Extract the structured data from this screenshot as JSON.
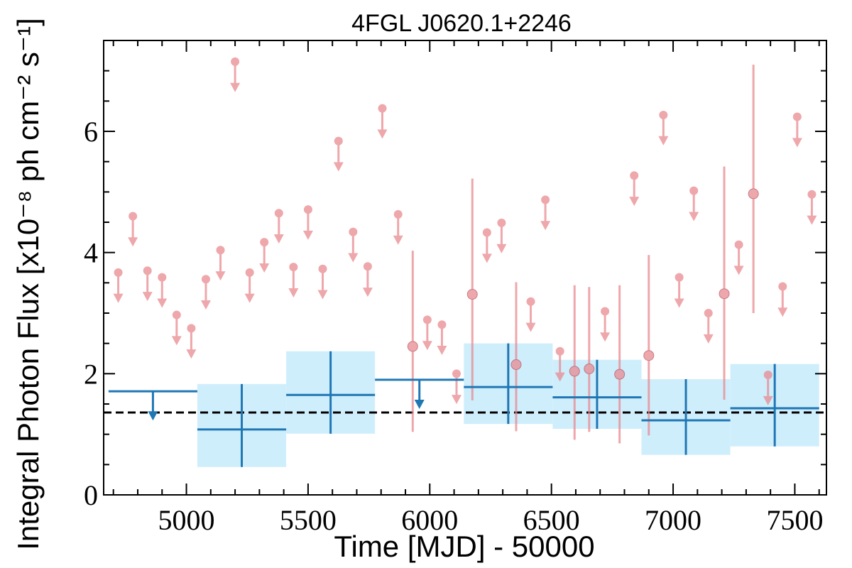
{
  "chart_data": {
    "type": "scatter",
    "title": "4FGL J0620.1+2246",
    "xlabel": "Time [MJD] - 50000",
    "ylabel": "Integral Photon Flux [x10⁻⁸ ph cm⁻² s⁻¹]",
    "xlim": [
      4660,
      7630
    ],
    "ylim": [
      0,
      7.5
    ],
    "xticks": [
      5000,
      5500,
      6000,
      6500,
      7000,
      7500
    ],
    "yticks": [
      0,
      2,
      4,
      6
    ],
    "reference_line": {
      "y": 1.36,
      "style": "dashed",
      "color": "#000000"
    },
    "colors": {
      "fine": "#e8868c",
      "coarse_line": "#1f77b4",
      "coarse_fill": "#cfeefc"
    },
    "fine_bins": {
      "upper_limits": [
        {
          "x": 4720,
          "y": 3.67
        },
        {
          "x": 4780,
          "y": 4.6
        },
        {
          "x": 4840,
          "y": 3.7
        },
        {
          "x": 4900,
          "y": 3.59
        },
        {
          "x": 4960,
          "y": 2.97
        },
        {
          "x": 5020,
          "y": 2.75
        },
        {
          "x": 5080,
          "y": 3.56
        },
        {
          "x": 5140,
          "y": 4.04
        },
        {
          "x": 5200,
          "y": 7.15
        },
        {
          "x": 5260,
          "y": 3.67
        },
        {
          "x": 5320,
          "y": 4.17
        },
        {
          "x": 5380,
          "y": 4.65
        },
        {
          "x": 5440,
          "y": 3.76
        },
        {
          "x": 5500,
          "y": 4.71
        },
        {
          "x": 5560,
          "y": 3.73
        },
        {
          "x": 5625,
          "y": 5.84
        },
        {
          "x": 5685,
          "y": 4.34
        },
        {
          "x": 5745,
          "y": 3.77
        },
        {
          "x": 5805,
          "y": 6.38
        },
        {
          "x": 5870,
          "y": 4.63
        },
        {
          "x": 5990,
          "y": 2.89
        },
        {
          "x": 6050,
          "y": 2.81
        },
        {
          "x": 6110,
          "y": 2.0
        },
        {
          "x": 6235,
          "y": 4.33
        },
        {
          "x": 6295,
          "y": 4.49
        },
        {
          "x": 6415,
          "y": 3.19
        },
        {
          "x": 6475,
          "y": 4.87
        },
        {
          "x": 6535,
          "y": 2.37
        },
        {
          "x": 6720,
          "y": 3.03
        },
        {
          "x": 6840,
          "y": 5.27
        },
        {
          "x": 6960,
          "y": 6.27
        },
        {
          "x": 7025,
          "y": 3.59
        },
        {
          "x": 7085,
          "y": 5.02
        },
        {
          "x": 7145,
          "y": 3.0
        },
        {
          "x": 7270,
          "y": 4.13
        },
        {
          "x": 7390,
          "y": 1.98
        },
        {
          "x": 7450,
          "y": 3.44
        },
        {
          "x": 7510,
          "y": 6.24
        },
        {
          "x": 7570,
          "y": 4.96
        }
      ],
      "detections": [
        {
          "x": 5930,
          "y": 2.45,
          "ylo": 1.04,
          "yhi": 4.03
        },
        {
          "x": 6175,
          "y": 3.31,
          "ylo": 1.56,
          "yhi": 5.22
        },
        {
          "x": 6355,
          "y": 2.15,
          "ylo": 1.05,
          "yhi": 3.51
        },
        {
          "x": 6595,
          "y": 2.04,
          "ylo": 0.91,
          "yhi": 3.46
        },
        {
          "x": 6655,
          "y": 2.08,
          "ylo": 1.04,
          "yhi": 3.43
        },
        {
          "x": 6780,
          "y": 1.99,
          "ylo": 0.85,
          "yhi": 3.46
        },
        {
          "x": 6900,
          "y": 2.3,
          "ylo": 0.98,
          "yhi": 3.96
        },
        {
          "x": 7210,
          "y": 3.32,
          "ylo": 1.57,
          "yhi": 5.42
        },
        {
          "x": 7330,
          "y": 4.97,
          "ylo": 3.0,
          "yhi": 7.1
        }
      ]
    },
    "coarse_bins": {
      "upper_limits": [
        {
          "x0": 4680,
          "x1": 5045,
          "y": 1.71
        },
        {
          "x0": 5775,
          "x1": 6140,
          "y": 1.9
        }
      ],
      "detections": [
        {
          "x0": 5045,
          "x1": 5410,
          "y": 1.08,
          "ylo": 0.46,
          "yhi": 1.83
        },
        {
          "x0": 5410,
          "x1": 5775,
          "y": 1.65,
          "ylo": 1.01,
          "yhi": 2.37
        },
        {
          "x0": 6140,
          "x1": 6505,
          "y": 1.78,
          "ylo": 1.17,
          "yhi": 2.5
        },
        {
          "x0": 6505,
          "x1": 6870,
          "y": 1.61,
          "ylo": 1.09,
          "yhi": 2.23
        },
        {
          "x0": 6870,
          "x1": 7235,
          "y": 1.23,
          "ylo": 0.66,
          "yhi": 1.91
        },
        {
          "x0": 7235,
          "x1": 7600,
          "y": 1.43,
          "ylo": 0.8,
          "yhi": 2.16
        }
      ]
    }
  }
}
